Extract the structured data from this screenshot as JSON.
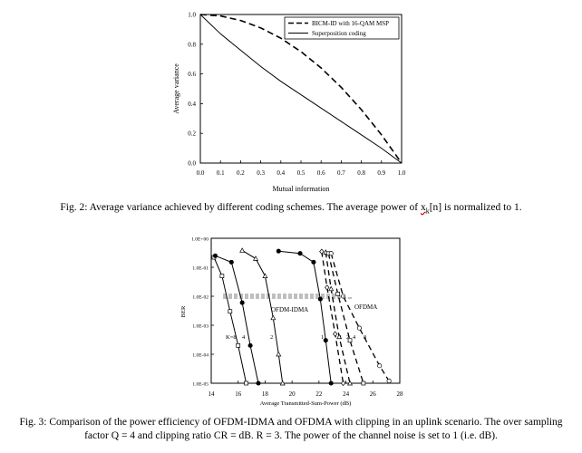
{
  "figure2": {
    "caption": {
      "prefix": "Fig. 2: Average variance achieved by different coding schemes. The average power of ",
      "var": "x",
      "sub": "k",
      "suffix": "[n] is normalized to 1."
    },
    "chart_data": {
      "type": "line",
      "title": "",
      "xlabel": "Mutual information",
      "ylabel": "Average variance",
      "xlim": [
        0,
        1
      ],
      "ylim": [
        0,
        1
      ],
      "xticks": [
        "0.0",
        "0.1",
        "0.2",
        "0.3",
        "0.4",
        "0.5",
        "0.6",
        "0.7",
        "0.8",
        "0.9",
        "1.0"
      ],
      "yticks": [
        "0.0",
        "0.2",
        "0.4",
        "0.6",
        "0.8",
        "1.0"
      ],
      "grid": false,
      "legend_position": "top-right",
      "series": [
        {
          "name": "BICM-ID with 16-QAM MSP",
          "style": "dashed",
          "x": [
            0,
            0.1,
            0.2,
            0.3,
            0.4,
            0.5,
            0.6,
            0.7,
            0.8,
            0.9,
            1.0
          ],
          "y": [
            1.0,
            0.99,
            0.96,
            0.91,
            0.84,
            0.75,
            0.64,
            0.51,
            0.36,
            0.19,
            0.0
          ]
        },
        {
          "name": "Superposition coding",
          "style": "solid",
          "x": [
            0,
            0.1,
            0.2,
            0.3,
            0.4,
            0.5,
            0.6,
            0.7,
            0.8,
            0.9,
            1.0
          ],
          "y": [
            1.0,
            0.87,
            0.76,
            0.65,
            0.55,
            0.46,
            0.37,
            0.28,
            0.19,
            0.1,
            0.0
          ]
        }
      ]
    }
  },
  "figure3": {
    "caption": "Fig. 3: Comparison of the power efficiency of OFDM-IDMA and OFDMA with clipping in an uplink scenario. The over sampling factor Q = 4 and clipping ratio CR =  dB. R = 3. The power of the channel noise is set to 1 (i.e.  dB).",
    "chart_data": {
      "type": "line",
      "title": "",
      "xlabel": "Average Transmitted-Sum-Power (dB)",
      "ylabel": "BER",
      "xlim": [
        14,
        28
      ],
      "ylim_log10": [
        -5,
        0
      ],
      "y_log_scale": true,
      "xticks": [
        "14",
        "16",
        "18",
        "20",
        "22",
        "24",
        "26",
        "28"
      ],
      "yticks": [
        "1.0E+00",
        "1.0E-01",
        "1.0E-02",
        "1.0E-03",
        "1.0E-04",
        "1.0E-05"
      ],
      "grid": false,
      "annotations": [
        "OFDM-IDMA",
        "OFDMA",
        "K=8",
        "4",
        "2",
        "1",
        "1",
        "2",
        "4",
        "8"
      ],
      "series": [
        {
          "label": "K=8",
          "scheme": "OFDM-IDMA",
          "style": "solid",
          "marker": "square",
          "x": [
            14.2,
            14.8,
            15.4,
            16.0,
            16.6
          ],
          "y": [
            0.22,
            0.05,
            0.003,
            0.0002,
            1e-05
          ]
        },
        {
          "label": "4",
          "scheme": "OFDM-IDMA",
          "style": "solid",
          "marker": "dot",
          "x": [
            14.3,
            15.5,
            16.3,
            16.9,
            17.5
          ],
          "y": [
            0.25,
            0.15,
            0.006,
            0.0002,
            1e-05
          ]
        },
        {
          "label": "2",
          "scheme": "OFDM-IDMA",
          "style": "solid",
          "marker": "triangle",
          "x": [
            16.3,
            17.3,
            18.0,
            18.6,
            19.0,
            19.3
          ],
          "y": [
            0.38,
            0.2,
            0.05,
            0.0018,
            0.0001,
            1e-05
          ]
        },
        {
          "label": "1",
          "scheme": "OFDM-IDMA",
          "style": "solid",
          "marker": "dot",
          "x": [
            19.0,
            20.6,
            21.6,
            22.1,
            22.5,
            22.9
          ],
          "y": [
            0.36,
            0.3,
            0.15,
            0.008,
            0.0003,
            1e-05
          ]
        },
        {
          "label": "1",
          "scheme": "OFDMA",
          "style": "dashed",
          "marker": "diamond",
          "x": [
            22.2,
            22.6,
            23.2,
            23.8
          ],
          "y": [
            0.35,
            0.02,
            0.0005,
            1e-05
          ]
        },
        {
          "label": "2",
          "scheme": "OFDMA",
          "style": "dashed",
          "marker": "triangle",
          "x": [
            22.5,
            22.9,
            23.5,
            24.3
          ],
          "y": [
            0.33,
            0.018,
            0.0004,
            1e-05
          ]
        },
        {
          "label": "4",
          "scheme": "OFDMA",
          "style": "dashed",
          "marker": "square",
          "x": [
            22.7,
            23.4,
            24.3,
            25.3
          ],
          "y": [
            0.3,
            0.012,
            0.0003,
            1e-05
          ]
        },
        {
          "label": "8",
          "scheme": "OFDMA",
          "style": "dashed",
          "marker": "circle",
          "x": [
            22.9,
            23.8,
            25.0,
            26.5,
            27.2
          ],
          "y": [
            0.3,
            0.01,
            0.0008,
            4e-05,
            1.2e-05
          ]
        }
      ]
    }
  }
}
